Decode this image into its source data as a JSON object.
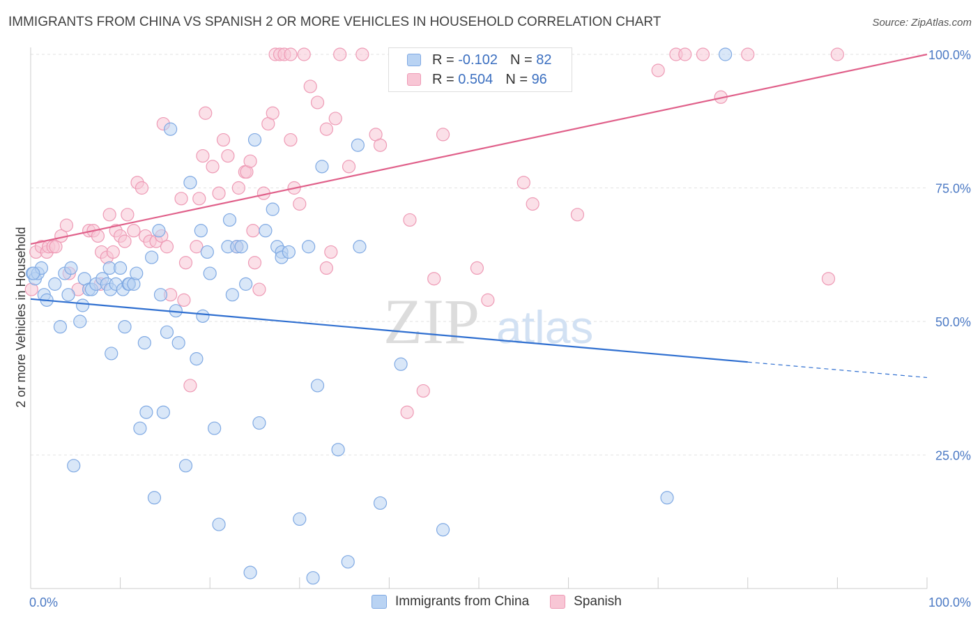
{
  "title": "IMMIGRANTS FROM CHINA VS SPANISH 2 OR MORE VEHICLES IN HOUSEHOLD CORRELATION CHART",
  "source": "Source: ZipAtlas.com",
  "watermark": {
    "zip": "ZIP",
    "atlas": "atlas"
  },
  "legend": [
    {
      "r_label": "R =",
      "r_value": "-0.102",
      "n_label": "N =",
      "n_value": "82"
    },
    {
      "r_label": "R =",
      "r_value": "0.504",
      "n_label": "N =",
      "n_value": "96"
    }
  ],
  "colors": {
    "china_fill": "#b9d3f3",
    "china_stroke": "#7fa9e3",
    "china_line": "#2f6fd0",
    "spanish_fill": "#f8c6d5",
    "spanish_stroke": "#ee9ab5",
    "spanish_line": "#e0608a",
    "grid": "#e2e2e2",
    "tick_text": "#4b79c4"
  },
  "chart_data": {
    "type": "scatter",
    "title": "IMMIGRANTS FROM CHINA VS SPANISH 2 OR MORE VEHICLES IN HOUSEHOLD CORRELATION CHART",
    "xlabel": "",
    "ylabel": "2 or more Vehicles in Household",
    "xlim": [
      0,
      100
    ],
    "ylim": [
      0,
      102
    ],
    "x_tick_labels": [
      "0.0%",
      "100.0%"
    ],
    "y_ticks": [
      25,
      50,
      75,
      100
    ],
    "y_tick_labels": [
      "25.0%",
      "50.0%",
      "75.0%",
      "100.0%"
    ],
    "grid": true,
    "legend_position": "bottom",
    "series": [
      {
        "name": "Immigrants from China",
        "trend": {
          "x": [
            0,
            80
          ],
          "y": [
            54.2,
            42.4
          ],
          "dashed_to": [
            100,
            39.5
          ]
        },
        "points": [
          [
            0.2,
            59
          ],
          [
            0.5,
            58
          ],
          [
            0.8,
            59
          ],
          [
            1.2,
            60
          ],
          [
            1.5,
            55
          ],
          [
            1.8,
            54
          ],
          [
            2.7,
            57
          ],
          [
            3.3,
            49
          ],
          [
            3.8,
            59
          ],
          [
            4.2,
            55
          ],
          [
            4.5,
            60
          ],
          [
            4.8,
            23
          ],
          [
            5.5,
            50
          ],
          [
            5.8,
            53
          ],
          [
            6,
            58
          ],
          [
            6.5,
            56
          ],
          [
            6.8,
            56
          ],
          [
            7.3,
            57
          ],
          [
            8,
            58
          ],
          [
            8.5,
            57
          ],
          [
            8.8,
            60
          ],
          [
            8.9,
            56
          ],
          [
            9,
            44
          ],
          [
            9.5,
            57
          ],
          [
            10,
            60
          ],
          [
            10.3,
            56
          ],
          [
            10.5,
            49
          ],
          [
            10.9,
            57
          ],
          [
            11,
            57
          ],
          [
            11.5,
            57
          ],
          [
            11.8,
            59
          ],
          [
            12.2,
            30
          ],
          [
            12.7,
            46
          ],
          [
            12.9,
            33
          ],
          [
            13.5,
            62
          ],
          [
            13.8,
            17
          ],
          [
            14.3,
            67
          ],
          [
            14.5,
            55
          ],
          [
            14.8,
            33
          ],
          [
            15.2,
            48
          ],
          [
            15.6,
            86
          ],
          [
            16.2,
            52
          ],
          [
            16.5,
            46
          ],
          [
            17.3,
            23
          ],
          [
            17.8,
            76
          ],
          [
            18.5,
            43
          ],
          [
            19,
            67
          ],
          [
            19.2,
            51
          ],
          [
            19.7,
            63
          ],
          [
            20,
            59
          ],
          [
            20.5,
            30
          ],
          [
            21,
            12
          ],
          [
            22,
            64
          ],
          [
            22.2,
            69
          ],
          [
            22.5,
            55
          ],
          [
            23,
            64
          ],
          [
            23.5,
            64
          ],
          [
            24,
            57
          ],
          [
            24.5,
            3
          ],
          [
            25,
            84
          ],
          [
            25.5,
            31
          ],
          [
            26.2,
            67
          ],
          [
            27,
            71
          ],
          [
            27.5,
            64
          ],
          [
            28,
            63
          ],
          [
            28,
            62
          ],
          [
            28.8,
            63
          ],
          [
            30,
            13
          ],
          [
            31,
            64
          ],
          [
            31.5,
            2
          ],
          [
            32,
            38
          ],
          [
            32.5,
            79
          ],
          [
            34.3,
            26
          ],
          [
            35.4,
            5
          ],
          [
            36.5,
            83
          ],
          [
            36.7,
            64
          ],
          [
            39,
            16
          ],
          [
            41.3,
            42
          ],
          [
            46,
            11
          ],
          [
            71,
            17
          ],
          [
            77.5,
            100
          ],
          [
            0.3,
            59
          ]
        ]
      },
      {
        "name": "Spanish",
        "trend": {
          "x": [
            0,
            100
          ],
          "y": [
            64.5,
            100
          ]
        },
        "points": [
          [
            0.1,
            56
          ],
          [
            0.6,
            63
          ],
          [
            1.2,
            64
          ],
          [
            1.8,
            63
          ],
          [
            2,
            64
          ],
          [
            2.5,
            64
          ],
          [
            2.8,
            64
          ],
          [
            3.4,
            66
          ],
          [
            4,
            68
          ],
          [
            4.3,
            59
          ],
          [
            5.3,
            56
          ],
          [
            6.5,
            67
          ],
          [
            7,
            67
          ],
          [
            7.5,
            66
          ],
          [
            7.8,
            57
          ],
          [
            7.9,
            63
          ],
          [
            8.5,
            62
          ],
          [
            8.8,
            70
          ],
          [
            9.2,
            63
          ],
          [
            9.5,
            67
          ],
          [
            10,
            66
          ],
          [
            10.5,
            65
          ],
          [
            10.8,
            70
          ],
          [
            11.5,
            67
          ],
          [
            11.9,
            76
          ],
          [
            12.4,
            75
          ],
          [
            12.8,
            66
          ],
          [
            13.3,
            65
          ],
          [
            14,
            65
          ],
          [
            14.6,
            66
          ],
          [
            14.8,
            87
          ],
          [
            15.2,
            64
          ],
          [
            15.6,
            55
          ],
          [
            16.8,
            73
          ],
          [
            17.1,
            54
          ],
          [
            17.3,
            61
          ],
          [
            17.8,
            38
          ],
          [
            18.5,
            64
          ],
          [
            18.8,
            73
          ],
          [
            19.2,
            81
          ],
          [
            19.5,
            89
          ],
          [
            20.3,
            79
          ],
          [
            21,
            74
          ],
          [
            21.5,
            84
          ],
          [
            22,
            81
          ],
          [
            23,
            64
          ],
          [
            23.2,
            75
          ],
          [
            23.9,
            78
          ],
          [
            24.1,
            78
          ],
          [
            24.5,
            80
          ],
          [
            24.8,
            67
          ],
          [
            25,
            61
          ],
          [
            25.5,
            56
          ],
          [
            26,
            74
          ],
          [
            26.5,
            87
          ],
          [
            27,
            89
          ],
          [
            27.3,
            100
          ],
          [
            27.8,
            100
          ],
          [
            28.3,
            100
          ],
          [
            29,
            100
          ],
          [
            29,
            84
          ],
          [
            29.4,
            75
          ],
          [
            30,
            72
          ],
          [
            30.5,
            100
          ],
          [
            31.2,
            94
          ],
          [
            32,
            91
          ],
          [
            33,
            86
          ],
          [
            33,
            60
          ],
          [
            33.5,
            63
          ],
          [
            34,
            88
          ],
          [
            34.5,
            100
          ],
          [
            35.5,
            79
          ],
          [
            37,
            100
          ],
          [
            38.5,
            85
          ],
          [
            39,
            83
          ],
          [
            42,
            33
          ],
          [
            42.3,
            69
          ],
          [
            43,
            100
          ],
          [
            43.8,
            37
          ],
          [
            45,
            58
          ],
          [
            46,
            85
          ],
          [
            49.8,
            60
          ],
          [
            50,
            100
          ],
          [
            51,
            54
          ],
          [
            52,
            100
          ],
          [
            55,
            76
          ],
          [
            56,
            72
          ],
          [
            61,
            70
          ],
          [
            70,
            97
          ],
          [
            72,
            100
          ],
          [
            73,
            100
          ],
          [
            75,
            100
          ],
          [
            77,
            92
          ],
          [
            80,
            100
          ],
          [
            89,
            58
          ],
          [
            90,
            100
          ]
        ]
      }
    ]
  }
}
